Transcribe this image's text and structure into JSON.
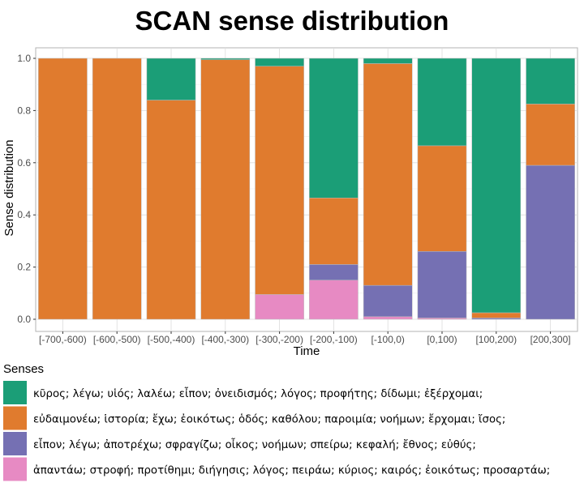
{
  "chart_data": {
    "type": "bar",
    "stacked": true,
    "title": "SCAN sense distribution",
    "xlabel": "Time",
    "ylabel": "Sense distribution",
    "ylim": [
      0,
      1
    ],
    "yticks": [
      "0.0",
      "0.2",
      "0.4",
      "0.6",
      "0.8",
      "1.0"
    ],
    "grid": true,
    "legend_position": "bottom",
    "legend_title": "Senses",
    "categories": [
      "[-700,-600)",
      "[-600,-500)",
      "[-500,-400)",
      "[-400,-300)",
      "[-300,-200)",
      "[-200,-100)",
      "[-100,0)",
      "[0,100)",
      "[100,200)",
      "[200,300]"
    ],
    "series": [
      {
        "name": "ἀπαντάω; στροφή; προτίθημι; διήγησις; λόγος; πειράω; κύριος; καιρός; ἐοικότως; προσαρτάω;",
        "color": "#E78AC3",
        "values": [
          0,
          0,
          0,
          0,
          0.095,
          0.15,
          0.01,
          0.005,
          0,
          0
        ]
      },
      {
        "name": "εἶπον; λέγω; ἀποτρέχω; σφραγίζω; οἶκος; νοήμων; σπείρω; κεφαλή; ἔθνος; εὐθύς;",
        "color": "#7570B3",
        "values": [
          0,
          0,
          0,
          0,
          0,
          0.06,
          0.12,
          0.255,
          0.005,
          0.59
        ]
      },
      {
        "name": "εὐδαιμονέω; ἱστορία; ἔχω; ἐοικότως; ὁδός; καθόλου; παροιμία; νοήμων; ἔρχομαι; ἴσος;",
        "color": "#E07B2E",
        "values": [
          1.0,
          1.0,
          0.84,
          0.995,
          0.875,
          0.255,
          0.85,
          0.405,
          0.02,
          0.235
        ]
      },
      {
        "name": "κῦρος; λέγω; υἱός; λαλέω; εἶπον; ὀνειδισμός; λόγος; προφήτης; δίδωμι; ἐξέρχομαι;",
        "color": "#1B9E77",
        "values": [
          0,
          0,
          0.16,
          0.005,
          0.03,
          0.535,
          0.02,
          0.335,
          0.975,
          0.175
        ]
      }
    ],
    "legend_order": [
      3,
      2,
      1,
      0
    ]
  }
}
